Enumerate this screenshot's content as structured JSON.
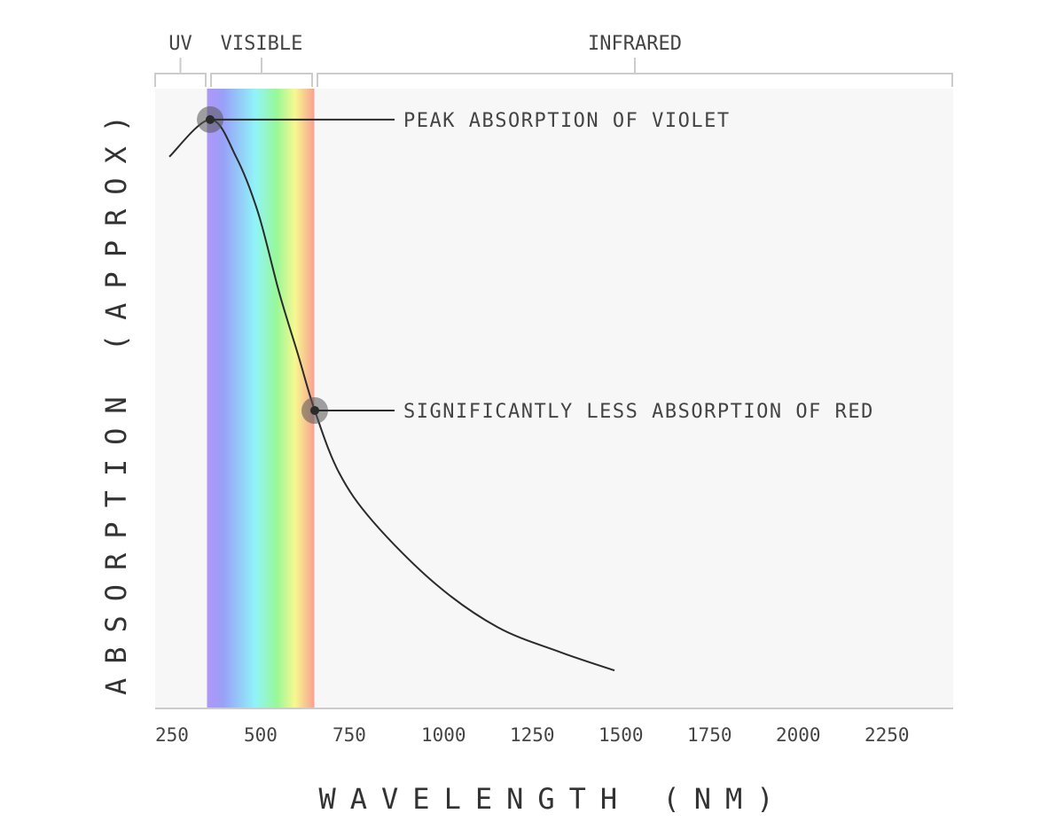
{
  "chart_data": {
    "type": "line",
    "title": "",
    "xlabel": "WAVELENGTH (NM)",
    "ylabel": "ABSORPTION (APPROX)",
    "xlim": [
      250,
      2500
    ],
    "ylim": [
      0,
      1
    ],
    "xticks": [
      250,
      500,
      750,
      1000,
      1250,
      1500,
      1750,
      2000,
      2250
    ],
    "xtick_labels": [
      "250",
      "500",
      "750",
      "1000",
      "1250",
      "1500",
      "1750",
      "2000",
      "2250"
    ],
    "grid": false,
    "series": [
      {
        "x": [
          290,
          405,
          478,
          540,
          600,
          653,
          700,
          768,
          865,
          1040,
          1215,
          1390,
          1545
        ],
        "y": [
          0.89,
          0.95,
          0.89,
          0.8,
          0.67,
          0.57,
          0.48,
          0.38,
          0.3,
          0.2,
          0.13,
          0.09,
          0.06
        ]
      }
    ],
    "regions": [
      {
        "label": "UV",
        "range": [
          250,
          400
        ]
      },
      {
        "label": "VISIBLE",
        "range": [
          400,
          700
        ],
        "spectrum": true
      },
      {
        "label": "INFRARED",
        "range": [
          700,
          2500
        ]
      }
    ],
    "annotations": [
      {
        "text": "PEAK ABSORPTION OF VIOLET",
        "x": 405,
        "y": 0.95
      },
      {
        "text": "SIGNIFICANTLY LESS ABSORPTION OF RED",
        "x": 700,
        "y": 0.48
      }
    ],
    "colors": {
      "plot_background": "#f7f7f7",
      "line": "#2b2b2b",
      "bracket": "#cccccc",
      "text": "#444444",
      "marker_halo": "#555555",
      "spectrum": [
        "#b096f8",
        "#98a0f8",
        "#90f4f8",
        "#98f898",
        "#f8f890",
        "#f8a090"
      ]
    }
  }
}
